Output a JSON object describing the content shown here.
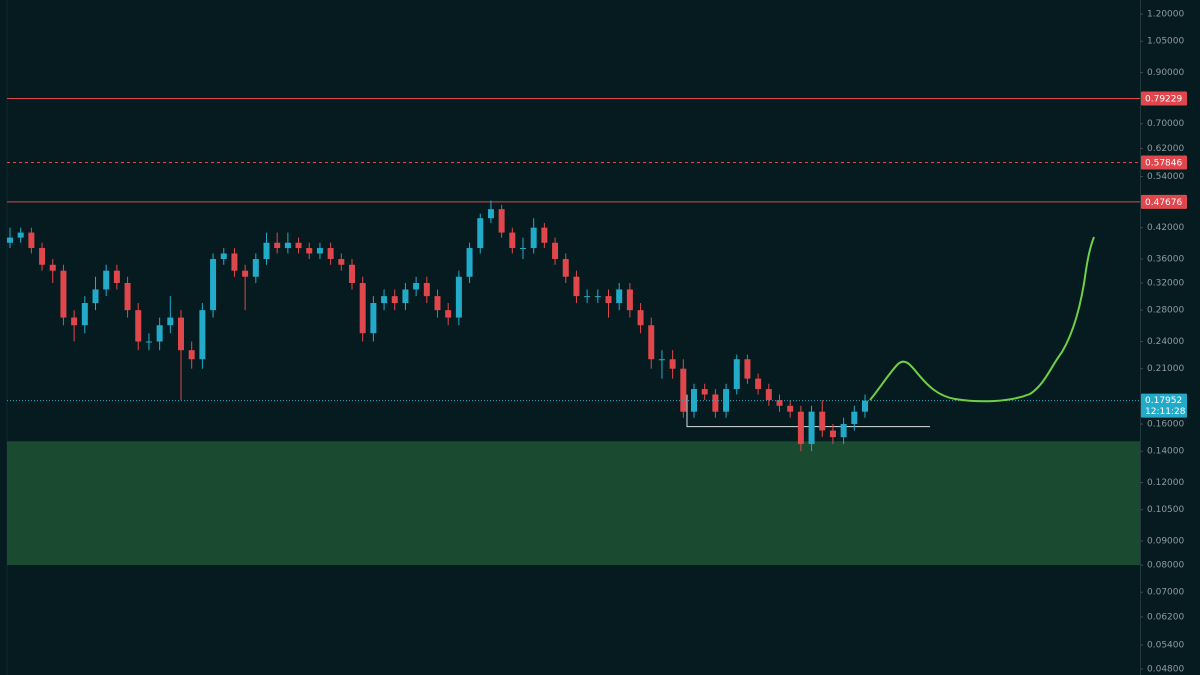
{
  "chart_data": {
    "type": "candlestick",
    "log_scale": true,
    "ylim": [
      0.0466,
      1.286
    ],
    "yticks": [
      {
        "value": 1.2,
        "label": "1.20000"
      },
      {
        "value": 1.05,
        "label": "1.05000"
      },
      {
        "value": 0.9,
        "label": "0.90000"
      },
      {
        "value": 0.7,
        "label": "0.70000"
      },
      {
        "value": 0.62,
        "label": "0.62000"
      },
      {
        "value": 0.54,
        "label": "0.54000"
      },
      {
        "value": 0.42,
        "label": "0.42000"
      },
      {
        "value": 0.36,
        "label": "0.36000"
      },
      {
        "value": 0.32,
        "label": "0.32000"
      },
      {
        "value": 0.28,
        "label": "0.28000"
      },
      {
        "value": 0.24,
        "label": "0.24000"
      },
      {
        "value": 0.21,
        "label": "0.21000"
      },
      {
        "value": 0.16,
        "label": "0.16000"
      },
      {
        "value": 0.14,
        "label": "0.14000"
      },
      {
        "value": 0.12,
        "label": "0.12000"
      },
      {
        "value": 0.105,
        "label": "0.10500"
      },
      {
        "value": 0.09,
        "label": "0.09000"
      },
      {
        "value": 0.08,
        "label": "0.08000"
      },
      {
        "value": 0.07,
        "label": "0.07000"
      },
      {
        "value": 0.062,
        "label": "0.06200"
      },
      {
        "value": 0.054,
        "label": "0.05400"
      },
      {
        "value": 0.048,
        "label": "0.04800"
      }
    ],
    "up_color": "#22abc9",
    "down_color": "#e0474c",
    "open": [
      0.39,
      0.4,
      0.41,
      0.38,
      0.35,
      0.34,
      0.27,
      0.26,
      0.29,
      0.31,
      0.34,
      0.32,
      0.28,
      0.24,
      0.24,
      0.26,
      0.27,
      0.23,
      0.22,
      0.28,
      0.36,
      0.37,
      0.34,
      0.33,
      0.36,
      0.39,
      0.38,
      0.39,
      0.38,
      0.37,
      0.38,
      0.36,
      0.35,
      0.32,
      0.25,
      0.29,
      0.3,
      0.29,
      0.31,
      0.32,
      0.3,
      0.28,
      0.27,
      0.33,
      0.38,
      0.44,
      0.46,
      0.41,
      0.38,
      0.38,
      0.42,
      0.39,
      0.36,
      0.33,
      0.3,
      0.3,
      0.3,
      0.29,
      0.31,
      0.28,
      0.26,
      0.22,
      0.22,
      0.21,
      0.17,
      0.19,
      0.185,
      0.17,
      0.19,
      0.22,
      0.2,
      0.19,
      0.18,
      0.175,
      0.17,
      0.145,
      0.17,
      0.155,
      0.15,
      0.16,
      0.17
    ],
    "high": [
      0.42,
      0.42,
      0.42,
      0.39,
      0.36,
      0.35,
      0.28,
      0.3,
      0.33,
      0.35,
      0.35,
      0.33,
      0.29,
      0.25,
      0.27,
      0.3,
      0.28,
      0.24,
      0.29,
      0.37,
      0.38,
      0.38,
      0.35,
      0.37,
      0.41,
      0.41,
      0.41,
      0.4,
      0.39,
      0.39,
      0.39,
      0.37,
      0.36,
      0.33,
      0.3,
      0.31,
      0.31,
      0.32,
      0.33,
      0.33,
      0.31,
      0.29,
      0.34,
      0.39,
      0.45,
      0.48,
      0.47,
      0.42,
      0.4,
      0.44,
      0.43,
      0.4,
      0.37,
      0.34,
      0.31,
      0.31,
      0.31,
      0.32,
      0.32,
      0.29,
      0.27,
      0.23,
      0.23,
      0.22,
      0.195,
      0.195,
      0.19,
      0.195,
      0.225,
      0.225,
      0.205,
      0.195,
      0.185,
      0.18,
      0.175,
      0.175,
      0.18,
      0.16,
      0.165,
      0.175,
      0.185
    ],
    "low": [
      0.38,
      0.39,
      0.37,
      0.34,
      0.32,
      0.26,
      0.24,
      0.25,
      0.28,
      0.3,
      0.31,
      0.27,
      0.23,
      0.23,
      0.23,
      0.25,
      0.18,
      0.21,
      0.21,
      0.27,
      0.35,
      0.33,
      0.28,
      0.32,
      0.35,
      0.37,
      0.37,
      0.37,
      0.36,
      0.36,
      0.35,
      0.34,
      0.31,
      0.24,
      0.24,
      0.28,
      0.28,
      0.28,
      0.3,
      0.29,
      0.27,
      0.26,
      0.26,
      0.32,
      0.37,
      0.43,
      0.4,
      0.37,
      0.36,
      0.37,
      0.38,
      0.35,
      0.32,
      0.29,
      0.29,
      0.29,
      0.27,
      0.28,
      0.27,
      0.25,
      0.21,
      0.2,
      0.2,
      0.165,
      0.165,
      0.18,
      0.165,
      0.165,
      0.185,
      0.195,
      0.185,
      0.175,
      0.17,
      0.165,
      0.14,
      0.14,
      0.15,
      0.145,
      0.145,
      0.155,
      0.165
    ],
    "close": [
      0.4,
      0.41,
      0.38,
      0.35,
      0.34,
      0.27,
      0.26,
      0.29,
      0.31,
      0.34,
      0.32,
      0.28,
      0.24,
      0.24,
      0.26,
      0.27,
      0.23,
      0.22,
      0.28,
      0.36,
      0.37,
      0.34,
      0.33,
      0.36,
      0.39,
      0.38,
      0.39,
      0.38,
      0.37,
      0.38,
      0.36,
      0.35,
      0.32,
      0.25,
      0.29,
      0.3,
      0.29,
      0.31,
      0.32,
      0.3,
      0.28,
      0.27,
      0.33,
      0.38,
      0.44,
      0.46,
      0.41,
      0.38,
      0.38,
      0.42,
      0.39,
      0.36,
      0.33,
      0.3,
      0.3,
      0.3,
      0.29,
      0.31,
      0.28,
      0.26,
      0.22,
      0.22,
      0.21,
      0.17,
      0.19,
      0.185,
      0.17,
      0.19,
      0.22,
      0.2,
      0.19,
      0.18,
      0.175,
      0.17,
      0.145,
      0.17,
      0.155,
      0.15,
      0.16,
      0.17,
      0.1795
    ],
    "levels": [
      {
        "value": 0.79229,
        "color": "#e0474c",
        "dashed": false
      },
      {
        "value": 0.57846,
        "color": "#e0474c",
        "dashed": true
      },
      {
        "value": 0.47676,
        "color": "#e0474c",
        "dashed": false
      }
    ],
    "zone": {
      "low": 0.08,
      "high": 0.147,
      "color": "#1a4a30"
    },
    "support_line": 0.158,
    "last_price": {
      "value": 0.17952,
      "countdown": "12:11:28",
      "color": "#22abc9"
    }
  }
}
